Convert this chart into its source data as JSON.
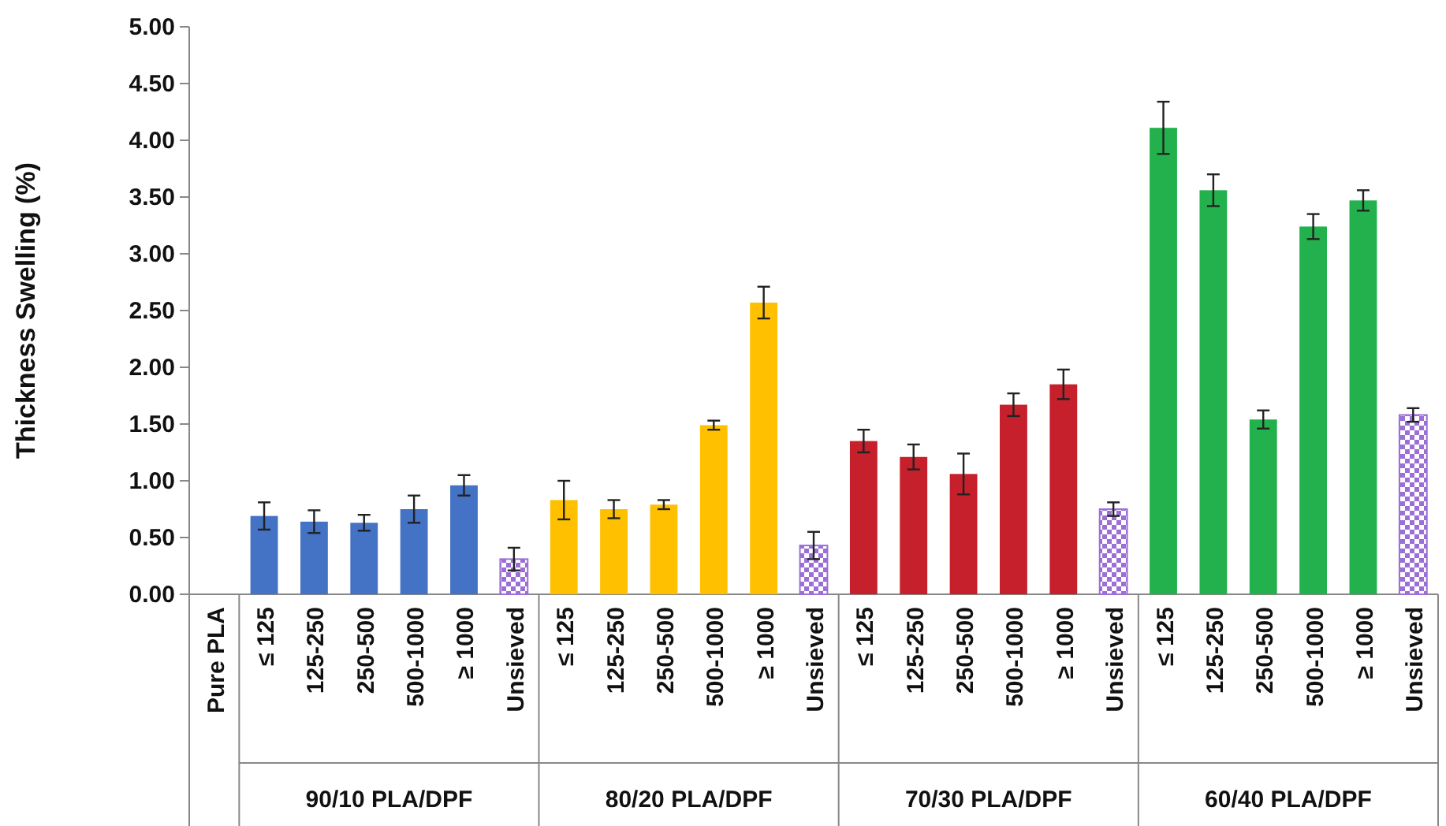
{
  "chart_data": {
    "type": "bar",
    "ylabel": "Thickness Swelling (%)",
    "categories": [
      "Pure PLA",
      "≤ 125",
      "125-250",
      "250-500",
      "500-1000",
      "≥ 1000",
      "Unsieved",
      "≤ 125",
      "125-250",
      "250-500",
      "500-1000",
      "≥ 1000",
      "Unsieved",
      "≤ 125",
      "125-250",
      "250-500",
      "500-1000",
      "≥ 1000",
      "Unsieved",
      "≤ 125",
      "125-250",
      "250-500",
      "500-1000",
      "≥ 1000",
      "Unsieved"
    ],
    "ylim": [
      0,
      5
    ],
    "yticks": [
      {
        "value": 0,
        "label": "0.00"
      },
      {
        "value": 0.5,
        "label": "0.50"
      },
      {
        "value": 1,
        "label": "1.00"
      },
      {
        "value": 1.5,
        "label": "1.50"
      },
      {
        "value": 2,
        "label": "2.00"
      },
      {
        "value": 2.5,
        "label": "2.50"
      },
      {
        "value": 3,
        "label": "3.00"
      },
      {
        "value": 3.5,
        "label": "3.50"
      },
      {
        "value": 4,
        "label": "4.00"
      },
      {
        "value": 4.5,
        "label": "4.50"
      },
      {
        "value": 5,
        "label": "5.00"
      }
    ],
    "grid": false,
    "annotations": [
      "90/10 PLA/DPF",
      "80/20 PLA/DPF",
      "70/30 PLA/DPF",
      "60/40 PLA/DPF"
    ],
    "series": [
      {
        "color": "#4472c4",
        "colors": [
          null,
          "#4472c4",
          "#4472c4",
          "#4472c4",
          "#4472c4",
          "#4472c4",
          "#9b6fd6",
          null,
          null,
          null,
          null,
          null,
          null,
          null,
          null,
          null,
          null,
          null,
          null,
          null,
          null,
          null,
          null,
          null,
          null
        ],
        "values": [
          null,
          0.69,
          0.64,
          0.63,
          0.75,
          0.96,
          0.31,
          null,
          null,
          null,
          null,
          null,
          null,
          null,
          null,
          null,
          null,
          null,
          null,
          null,
          null,
          null,
          null,
          null,
          null
        ],
        "errors": [
          null,
          0.12,
          0.1,
          0.07,
          0.12,
          0.09,
          0.1,
          null,
          null,
          null,
          null,
          null,
          null,
          null,
          null,
          null,
          null,
          null,
          null,
          null,
          null,
          null,
          null,
          null,
          null
        ]
      },
      {
        "color": "#ffc000",
        "colors": [
          null,
          null,
          null,
          null,
          null,
          null,
          null,
          "#ffc000",
          "#ffc000",
          "#ffc000",
          "#ffc000",
          "#ffc000",
          "#9b6fd6",
          null,
          null,
          null,
          null,
          null,
          null,
          null,
          null,
          null,
          null,
          null,
          null
        ],
        "values": [
          null,
          null,
          null,
          null,
          null,
          null,
          null,
          0.83,
          0.75,
          0.79,
          1.49,
          2.57,
          0.43,
          null,
          null,
          null,
          null,
          null,
          null,
          null,
          null,
          null,
          null,
          null,
          null
        ],
        "errors": [
          null,
          null,
          null,
          null,
          null,
          null,
          null,
          0.17,
          0.08,
          0.04,
          0.04,
          0.14,
          0.12,
          null,
          null,
          null,
          null,
          null,
          null,
          null,
          null,
          null,
          null,
          null,
          null
        ]
      },
      {
        "color": "#c5202b",
        "colors": [
          null,
          null,
          null,
          null,
          null,
          null,
          null,
          null,
          null,
          null,
          null,
          null,
          null,
          "#c5202b",
          "#c5202b",
          "#c5202b",
          "#c5202b",
          "#c5202b",
          "#9b6fd6",
          null,
          null,
          null,
          null,
          null,
          null
        ],
        "values": [
          null,
          null,
          null,
          null,
          null,
          null,
          null,
          null,
          null,
          null,
          null,
          null,
          null,
          1.35,
          1.21,
          1.06,
          1.67,
          1.85,
          0.75,
          null,
          null,
          null,
          null,
          null,
          null
        ],
        "errors": [
          null,
          null,
          null,
          null,
          null,
          null,
          null,
          null,
          null,
          null,
          null,
          null,
          null,
          0.1,
          0.11,
          0.18,
          0.1,
          0.13,
          0.06,
          null,
          null,
          null,
          null,
          null,
          null
        ]
      },
      {
        "color": "#22b14c",
        "colors": [
          null,
          null,
          null,
          null,
          null,
          null,
          null,
          null,
          null,
          null,
          null,
          null,
          null,
          null,
          null,
          null,
          null,
          null,
          null,
          "#22b14c",
          "#22b14c",
          "#22b14c",
          "#22b14c",
          "#22b14c",
          "#9b6fd6"
        ],
        "values": [
          null,
          null,
          null,
          null,
          null,
          null,
          null,
          null,
          null,
          null,
          null,
          null,
          null,
          null,
          null,
          null,
          null,
          null,
          null,
          4.11,
          3.56,
          1.54,
          3.24,
          3.47,
          1.58
        ],
        "errors": [
          null,
          null,
          null,
          null,
          null,
          null,
          null,
          null,
          null,
          null,
          null,
          null,
          null,
          null,
          null,
          null,
          null,
          null,
          null,
          0.23,
          0.14,
          0.08,
          0.11,
          0.09,
          0.06
        ]
      }
    ]
  }
}
